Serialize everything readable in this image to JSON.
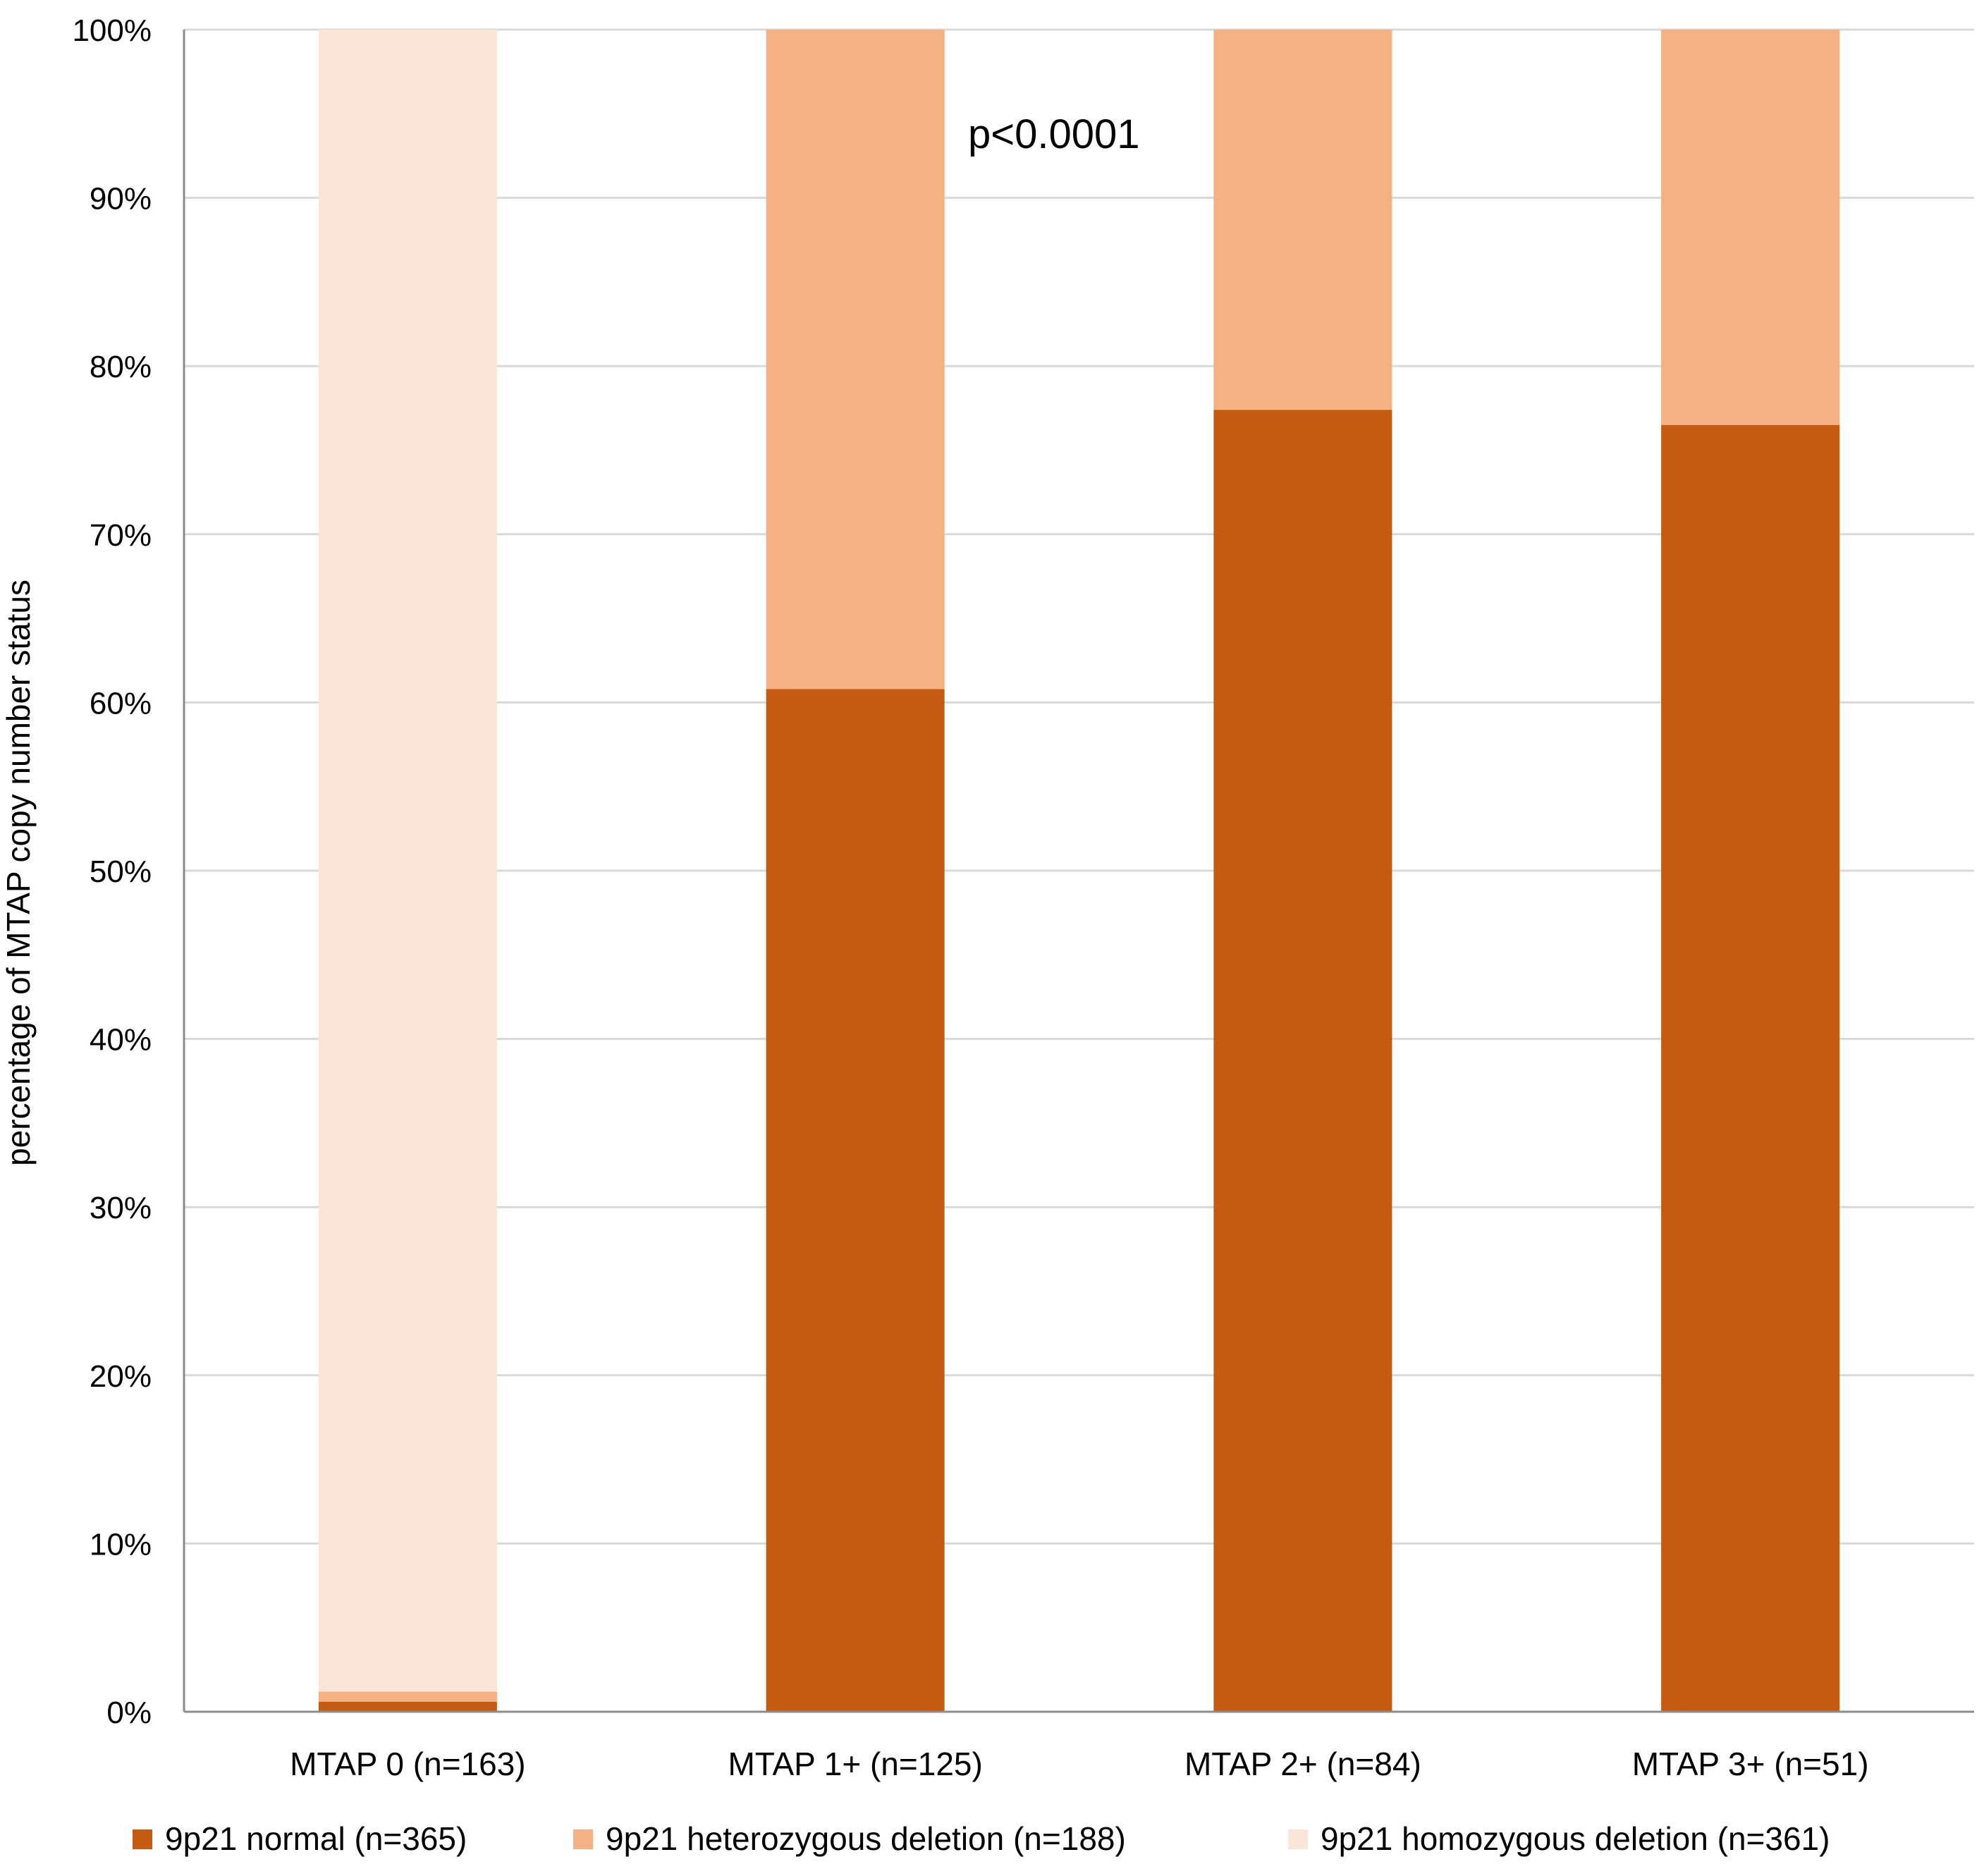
{
  "chart_data": {
    "type": "bar",
    "stacked": true,
    "title": "",
    "xlabel": "",
    "ylabel": "percentage of MTAP copy number status",
    "ylim": [
      0,
      100
    ],
    "yticks": [
      "0%",
      "10%",
      "20%",
      "30%",
      "40%",
      "50%",
      "60%",
      "70%",
      "80%",
      "90%",
      "100%"
    ],
    "categories": [
      "MTAP 0 (n=163)",
      "MTAP 1+ (n=125)",
      "MTAP 2+ (n=84)",
      "MTAP 3+ (n=51)"
    ],
    "series": [
      {
        "name": "9p21 normal (n=365)",
        "color": "#c55a11",
        "values": [
          0.6,
          60.8,
          77.4,
          76.5
        ]
      },
      {
        "name": "9p21 heterozygous deletion (n=188)",
        "color": "#f4b183",
        "values": [
          0.6,
          39.2,
          22.6,
          23.5
        ]
      },
      {
        "name": "9p21 homozygous deletion (n=361)",
        "color": "#fbe5d6",
        "values": [
          98.8,
          0,
          0,
          0
        ]
      }
    ],
    "annotations": [
      {
        "text": "p<0.0001"
      }
    ],
    "legend_position": "bottom",
    "grid": true
  },
  "colors": {
    "gridline": "#d9d9d9",
    "axis": "#8c8c8c",
    "text": "#000000"
  }
}
